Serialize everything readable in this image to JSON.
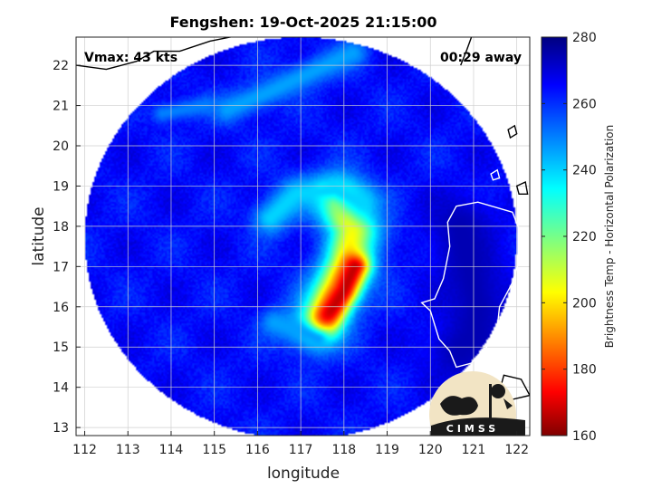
{
  "chart_data": {
    "type": "heatmap",
    "title": "Fengshen: 19-Oct-2025 21:15:00",
    "xlabel": "longitude",
    "ylabel": "latitude",
    "xlim": [
      111.8,
      122.3
    ],
    "ylim": [
      12.8,
      22.7
    ],
    "xticks": [
      112,
      113,
      114,
      115,
      116,
      117,
      118,
      119,
      120,
      121,
      122
    ],
    "yticks": [
      13,
      14,
      15,
      16,
      17,
      18,
      19,
      20,
      21,
      22
    ],
    "grid": true,
    "colorbar": {
      "label": "Brightness Temp - Horizontal Polarization",
      "range": [
        160,
        280
      ],
      "ticks": [
        160,
        180,
        200,
        220,
        240,
        260,
        280
      ],
      "colormap": "jet"
    },
    "annotations": {
      "vmax": "Vmax: 43 kts",
      "time_offset": "00:29 away"
    },
    "swath": {
      "center": [
        117.0,
        17.7
      ],
      "radius_deg": 5.0
    },
    "background_value": 264,
    "features": [
      {
        "kind": "rainband",
        "points": [
          [
            117.9,
            18.6
          ],
          [
            118.3,
            17.8
          ],
          [
            118.1,
            17.0
          ],
          [
            117.7,
            16.2
          ],
          [
            117.4,
            15.6
          ]
        ],
        "value": 235,
        "width": 0.5
      },
      {
        "kind": "rainband",
        "points": [
          [
            117.9,
            18.6
          ],
          [
            118.2,
            17.9
          ],
          [
            118.05,
            17.1
          ],
          [
            117.7,
            16.3
          ],
          [
            117.5,
            15.7
          ]
        ],
        "value": 205,
        "width": 0.28
      },
      {
        "kind": "core",
        "points": [
          [
            118.25,
            17.0
          ],
          [
            118.0,
            16.4
          ],
          [
            117.7,
            15.9
          ],
          [
            117.45,
            15.5
          ]
        ],
        "value": 168,
        "width": 0.22
      },
      {
        "kind": "core",
        "points": [
          [
            117.5,
            18.85
          ],
          [
            117.9,
            18.65
          ]
        ],
        "value": 190,
        "width": 0.12
      },
      {
        "kind": "outer-band",
        "points": [
          [
            116.3,
            18.2
          ],
          [
            116.9,
            18.8
          ],
          [
            117.8,
            18.9
          ],
          [
            118.4,
            18.6
          ]
        ],
        "value": 240,
        "width": 0.3
      },
      {
        "kind": "outer-band",
        "points": [
          [
            115.3,
            20.9
          ],
          [
            116.2,
            21.3
          ],
          [
            117.2,
            21.8
          ],
          [
            118.2,
            22.3
          ]
        ],
        "value": 246,
        "width": 0.25
      },
      {
        "kind": "outer-band",
        "points": [
          [
            113.8,
            20.8
          ],
          [
            114.8,
            21.0
          ]
        ],
        "value": 250,
        "width": 0.18
      },
      {
        "kind": "outer-band",
        "points": [
          [
            116.4,
            15.6
          ],
          [
            117.0,
            15.4
          ],
          [
            117.4,
            15.2
          ]
        ],
        "value": 246,
        "width": 0.25
      },
      {
        "kind": "land",
        "points": [
          [
            120.7,
            18.0
          ],
          [
            120.9,
            17.0
          ],
          [
            121.1,
            16.0
          ],
          [
            121.0,
            15.3
          ],
          [
            120.7,
            14.9
          ]
        ],
        "value": 274,
        "width": 0.55
      }
    ],
    "coastline_luzon": [
      [
        120.6,
        18.5
      ],
      [
        121.1,
        18.6
      ],
      [
        121.9,
        18.35
      ],
      [
        122.1,
        17.8
      ],
      [
        122.1,
        17.3
      ],
      [
        121.9,
        16.6
      ],
      [
        121.6,
        16.0
      ],
      [
        121.55,
        15.5
      ],
      [
        121.3,
        15.0
      ],
      [
        120.95,
        14.6
      ],
      [
        120.6,
        14.5
      ],
      [
        120.45,
        14.9
      ],
      [
        120.2,
        15.2
      ],
      [
        120.0,
        15.9
      ],
      [
        119.8,
        16.1
      ],
      [
        120.1,
        16.2
      ],
      [
        120.3,
        16.7
      ],
      [
        120.45,
        17.5
      ],
      [
        120.4,
        18.1
      ],
      [
        120.6,
        18.5
      ]
    ],
    "coastline_china": [
      [
        111.8,
        22.0
      ],
      [
        112.5,
        21.9
      ],
      [
        113.2,
        22.1
      ],
      [
        113.6,
        22.35
      ],
      [
        114.2,
        22.35
      ],
      [
        114.9,
        22.6
      ],
      [
        115.6,
        22.75
      ],
      [
        116.4,
        22.9
      ],
      [
        117.1,
        23.3
      ],
      [
        117.8,
        23.8
      ]
    ],
    "coastline_taiwan": [
      [
        120.7,
        22.0
      ],
      [
        120.85,
        22.4
      ],
      [
        120.95,
        22.7
      ]
    ],
    "coastline_islands": [
      [
        [
          121.8,
          20.4
        ],
        [
          121.95,
          20.5
        ],
        [
          122.0,
          20.3
        ],
        [
          121.85,
          20.2
        ],
        [
          121.8,
          20.4
        ]
      ],
      [
        [
          121.4,
          19.3
        ],
        [
          121.55,
          19.4
        ],
        [
          121.6,
          19.2
        ],
        [
          121.45,
          19.15
        ],
        [
          121.4,
          19.3
        ]
      ],
      [
        [
          122.0,
          19.0
        ],
        [
          122.2,
          19.1
        ],
        [
          122.25,
          18.8
        ],
        [
          122.05,
          18.8
        ],
        [
          122.0,
          19.0
        ]
      ],
      [
        [
          121.7,
          14.3
        ],
        [
          122.1,
          14.2
        ],
        [
          122.3,
          13.8
        ],
        [
          121.9,
          13.7
        ],
        [
          121.6,
          13.9
        ],
        [
          121.7,
          14.3
        ]
      ]
    ],
    "logo": {
      "text": "CIMSS"
    }
  }
}
